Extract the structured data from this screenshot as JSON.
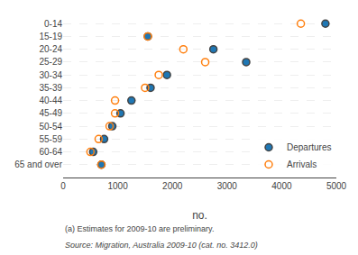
{
  "chart_data": {
    "type": "scatter",
    "orientation": "horizontal",
    "categories": [
      "0-14",
      "15-19",
      "20-24",
      "25-29",
      "30-34",
      "35-39",
      "40-44",
      "45-49",
      "50-54",
      "55-59",
      "60-64",
      "65 and over"
    ],
    "series": [
      {
        "name": "Departures",
        "marker": "circle",
        "values": [
          4800,
          1550,
          2750,
          3350,
          1900,
          1600,
          1250,
          1050,
          900,
          750,
          550,
          700
        ]
      },
      {
        "name": "Arrivals",
        "marker": "circle-open",
        "values": [
          4350,
          1550,
          2200,
          2600,
          1750,
          1500,
          950,
          950,
          850,
          650,
          500,
          700
        ]
      }
    ],
    "xlabel": "no.",
    "xlim": [
      0,
      5000
    ],
    "xticks": [
      0,
      1000,
      2000,
      3000,
      4000,
      5000
    ],
    "grid": "y",
    "legend": "lower right",
    "annotations": [
      "(a) Estimates for 2009-10 are preliminary.",
      "Source: Migration, Australia 2009-10 (cat. no. 3412.0)"
    ]
  }
}
